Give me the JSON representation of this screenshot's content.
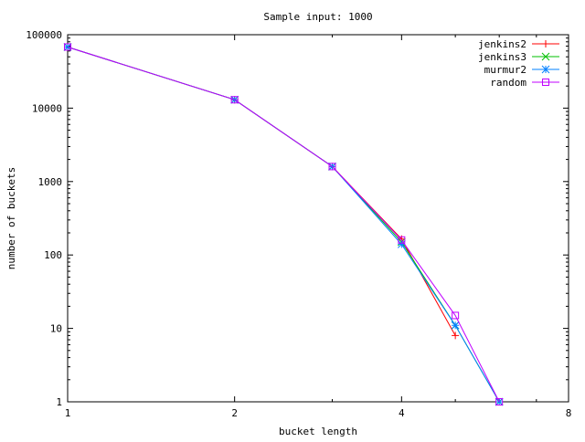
{
  "chart_data": {
    "type": "line",
    "title": "Sample input: 1000",
    "xlabel": "bucket length",
    "ylabel": "number of buckets",
    "x_scale": "log2",
    "y_scale": "log10",
    "xlim": [
      1,
      8
    ],
    "ylim": [
      1,
      100000
    ],
    "x_ticks": [
      1,
      2,
      4,
      8
    ],
    "x_tick_labels": [
      "1",
      "2",
      "4",
      "8"
    ],
    "y_ticks": [
      1,
      10,
      100,
      1000,
      10000,
      100000
    ],
    "y_tick_labels": [
      "1",
      "10",
      "100",
      "1000",
      "10000",
      "100000"
    ],
    "grid": false,
    "legend_position": "top-right",
    "series": [
      {
        "name": "jenkins2",
        "color": "#ff0000",
        "marker": "plus",
        "points": [
          [
            1,
            68000
          ],
          [
            2,
            13000
          ],
          [
            3,
            1600
          ],
          [
            4,
            165
          ],
          [
            5,
            8
          ]
        ]
      },
      {
        "name": "jenkins3",
        "color": "#00c000",
        "marker": "cross",
        "points": [
          [
            1,
            68000
          ],
          [
            2,
            13000
          ],
          [
            3,
            1600
          ],
          [
            4,
            150
          ],
          [
            5,
            11
          ],
          [
            6,
            1
          ]
        ]
      },
      {
        "name": "murmur2",
        "color": "#0080ff",
        "marker": "star",
        "points": [
          [
            1,
            68000
          ],
          [
            2,
            13000
          ],
          [
            3,
            1600
          ],
          [
            4,
            140
          ],
          [
            5,
            11
          ],
          [
            6,
            1
          ]
        ]
      },
      {
        "name": "random",
        "color": "#c000ff",
        "marker": "box",
        "points": [
          [
            1,
            68000
          ],
          [
            2,
            13000
          ],
          [
            3,
            1600
          ],
          [
            4,
            160
          ],
          [
            5,
            15
          ],
          [
            6,
            1
          ]
        ]
      }
    ]
  }
}
